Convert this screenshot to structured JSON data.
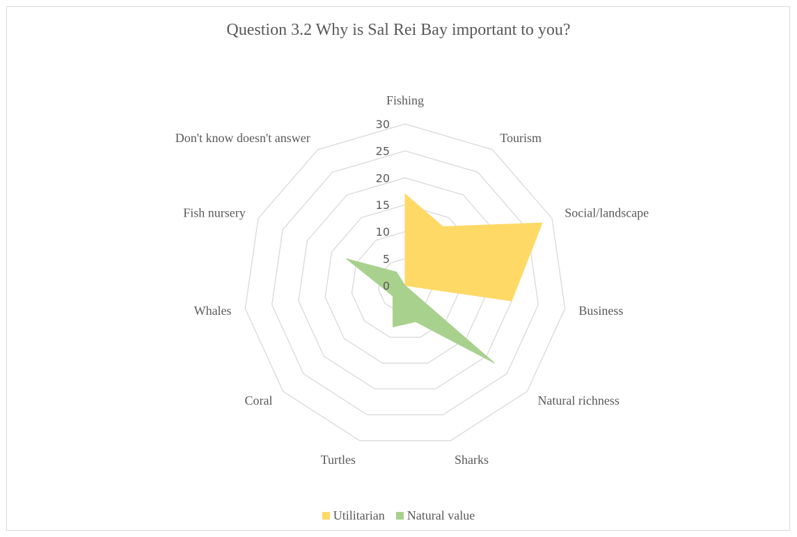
{
  "chart_data": {
    "type": "radar",
    "title": "Question 3.2 Why is Sal Rei Bay important to you?",
    "categories": [
      "Fishing",
      "Tourism",
      "Social/landscape",
      "Business",
      "Natural richness",
      "Sharks",
      "Turtles",
      "Coral",
      "Whales",
      "Fish nursery",
      "Don't know doesn't answer"
    ],
    "series": [
      {
        "name": "Utilitarian",
        "color": "#ffd966",
        "values": [
          17,
          13,
          28,
          20,
          0,
          0,
          0,
          0,
          0,
          0,
          0
        ]
      },
      {
        "name": "Natural value",
        "color": "#a9d18e",
        "values": [
          0,
          0,
          0,
          0,
          22,
          7,
          8,
          3,
          4,
          12,
          3
        ]
      }
    ],
    "ylim": [
      0,
      30
    ],
    "yticks": [
      0,
      5,
      10,
      15,
      20,
      25,
      30
    ],
    "grid": true,
    "legend_position": "bottom"
  }
}
